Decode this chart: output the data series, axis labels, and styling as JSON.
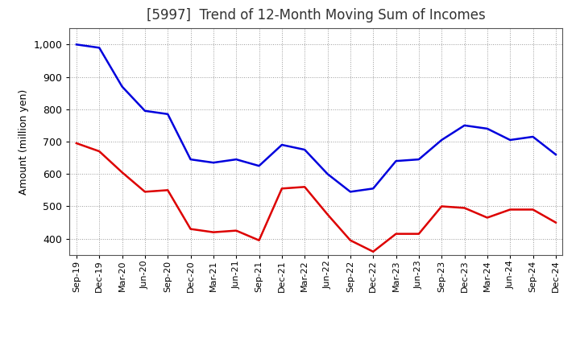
{
  "title": "[5997]  Trend of 12-Month Moving Sum of Incomes",
  "ylabel": "Amount (million yen)",
  "x_labels": [
    "Sep-19",
    "Dec-19",
    "Mar-20",
    "Jun-20",
    "Sep-20",
    "Dec-20",
    "Mar-21",
    "Jun-21",
    "Sep-21",
    "Dec-21",
    "Mar-22",
    "Jun-22",
    "Sep-22",
    "Dec-22",
    "Mar-23",
    "Jun-23",
    "Sep-23",
    "Dec-23",
    "Mar-24",
    "Jun-24",
    "Sep-24",
    "Dec-24"
  ],
  "ordinary_income": [
    1000,
    990,
    870,
    795,
    785,
    645,
    635,
    645,
    625,
    690,
    675,
    600,
    545,
    555,
    640,
    645,
    705,
    750,
    740,
    705,
    715,
    660
  ],
  "net_income": [
    695,
    670,
    605,
    545,
    550,
    430,
    420,
    425,
    395,
    555,
    560,
    475,
    395,
    360,
    415,
    415,
    500,
    495,
    465,
    490,
    490,
    450
  ],
  "ordinary_color": "#0000dd",
  "net_color": "#dd0000",
  "ylim_min": 350,
  "ylim_max": 1050,
  "yticks": [
    400,
    500,
    600,
    700,
    800,
    900,
    1000
  ],
  "background_color": "#ffffff",
  "grid_color": "#999999",
  "title_fontsize": 12
}
